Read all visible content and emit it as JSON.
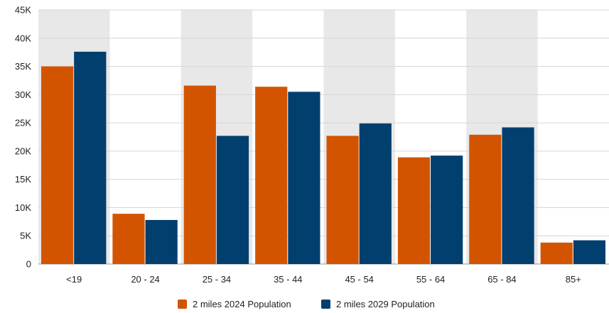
{
  "chart_data": {
    "type": "bar",
    "title": "",
    "xlabel": "",
    "ylabel": "",
    "categories": [
      "<19",
      "20 - 24",
      "25 - 34",
      "35 - 44",
      "45 - 54",
      "55 - 64",
      "65 - 84",
      "85+"
    ],
    "series": [
      {
        "name": "2 miles 2024 Population",
        "color": "#d35400",
        "values": [
          35000,
          8900,
          31600,
          31400,
          22700,
          18900,
          22900,
          3800
        ]
      },
      {
        "name": "2 miles 2029 Population",
        "color": "#003f6e",
        "values": [
          37600,
          7800,
          22700,
          30500,
          24900,
          19200,
          24200,
          4200
        ]
      }
    ],
    "ylim": [
      0,
      45000
    ],
    "yticks": [
      0,
      5000,
      10000,
      15000,
      20000,
      25000,
      30000,
      35000,
      40000,
      45000
    ],
    "ytick_labels": [
      "0",
      "5K",
      "10K",
      "15K",
      "20K",
      "25K",
      "30K",
      "35K",
      "40K",
      "45K"
    ],
    "grid": true,
    "band_color": "#e8e8e8",
    "legend": "bottom-center"
  }
}
